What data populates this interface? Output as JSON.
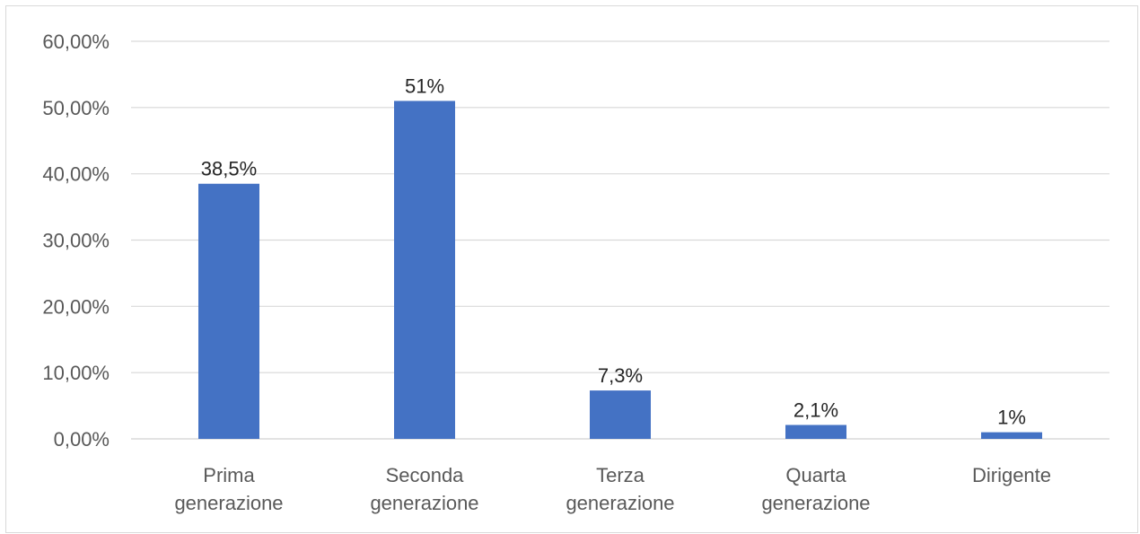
{
  "chart_data": {
    "type": "bar",
    "title": "",
    "xlabel": "",
    "ylabel": "",
    "categories": [
      [
        "Prima",
        "generazione"
      ],
      [
        "Seconda",
        "generazione"
      ],
      [
        "Terza",
        "generazione"
      ],
      [
        "Quarta",
        "generazione"
      ],
      [
        "Dirigente"
      ]
    ],
    "values": [
      38.5,
      51,
      7.3,
      2.1,
      1
    ],
    "data_labels": [
      "38,5%",
      "51%",
      "7,3%",
      "2,1%",
      "1%"
    ],
    "ylim": [
      0,
      60
    ],
    "yticks": [
      0,
      10,
      20,
      30,
      40,
      50,
      60
    ],
    "ytick_labels": [
      "0,00%",
      "10,00%",
      "20,00%",
      "30,00%",
      "40,00%",
      "50,00%",
      "60,00%"
    ],
    "grid": true,
    "legend": "none",
    "colors": {
      "bar": "#4472C4",
      "grid": "#d9d9d9",
      "axis": "#d9d9d9",
      "text": "#595959",
      "data_label": "#262626"
    }
  }
}
